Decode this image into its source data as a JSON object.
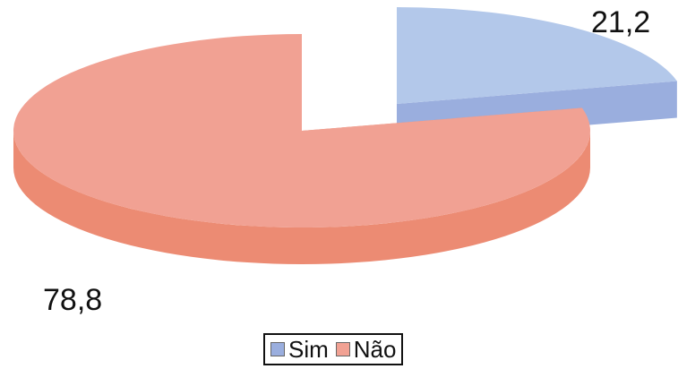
{
  "chart_data": {
    "type": "pie",
    "title": "",
    "labels": [
      "Sim",
      "Não"
    ],
    "values": [
      21.2,
      78.8
    ],
    "value_labels": [
      "21,2",
      "78,8"
    ],
    "colors": {
      "Sim": {
        "top": "#b3c8ea",
        "side": "#9aaede"
      },
      "Não": {
        "top": "#f1a193",
        "side": "#ec8b73"
      }
    },
    "style": "3d-exploded",
    "legend": "bottom-center"
  }
}
